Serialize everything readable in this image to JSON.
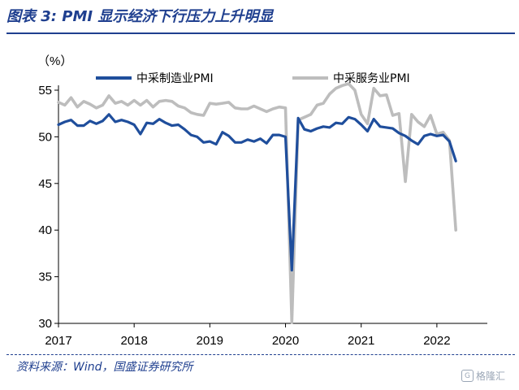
{
  "header": {
    "title": "图表 3:  PMI 显示经济下行压力上升明显"
  },
  "footer": {
    "source": "资料来源：Wind，国盛证券研究所",
    "watermark_icon": "G",
    "watermark_text": "格隆汇"
  },
  "chart_data": {
    "type": "line",
    "title": "",
    "xlabel": "",
    "ylabel": "（%）",
    "ylim": [
      30,
      55
    ],
    "yticks": [
      30,
      35,
      40,
      45,
      50,
      55
    ],
    "xticks": [
      "2017",
      "2018",
      "2019",
      "2020",
      "2021",
      "2022"
    ],
    "x_start": "2017-01",
    "legend_position": "top",
    "grid": false,
    "series": [
      {
        "name": "中采制造业PMI",
        "color": "#1f4e9c",
        "values": [
          51.3,
          51.6,
          51.8,
          51.2,
          51.2,
          51.7,
          51.4,
          51.7,
          52.4,
          51.6,
          51.8,
          51.6,
          51.3,
          50.3,
          51.5,
          51.4,
          51.9,
          51.5,
          51.2,
          51.3,
          50.8,
          50.2,
          50.0,
          49.4,
          49.5,
          49.2,
          50.5,
          50.1,
          49.4,
          49.4,
          49.7,
          49.5,
          49.8,
          49.3,
          50.2,
          50.2,
          50.0,
          35.7,
          52.0,
          50.8,
          50.6,
          50.9,
          51.1,
          51.0,
          51.5,
          51.4,
          52.1,
          51.9,
          51.3,
          50.6,
          51.9,
          51.1,
          51.0,
          50.9,
          50.4,
          50.1,
          49.6,
          49.2,
          50.1,
          50.3,
          50.1,
          50.2,
          49.5,
          47.4
        ],
        "data_labels": []
      },
      {
        "name": "中采服务业PMI",
        "color": "#bdbdbd",
        "values": [
          53.7,
          53.4,
          54.2,
          53.2,
          53.8,
          53.5,
          53.1,
          53.4,
          54.4,
          53.6,
          53.8,
          53.4,
          53.9,
          53.4,
          53.9,
          53.2,
          53.8,
          53.9,
          53.8,
          53.3,
          53.1,
          52.6,
          52.4,
          52.3,
          53.6,
          53.5,
          53.6,
          53.7,
          53.1,
          53.0,
          53.0,
          53.3,
          53.0,
          52.7,
          53.0,
          53.2,
          53.1,
          30.1,
          51.8,
          52.1,
          52.4,
          53.4,
          53.6,
          54.6,
          55.2,
          55.5,
          55.7,
          55.0,
          52.4,
          51.4,
          55.2,
          54.4,
          54.5,
          52.3,
          52.5,
          45.2,
          52.4,
          51.6,
          51.1,
          52.3,
          50.3,
          50.5,
          49.6,
          40.0
        ],
        "data_labels": []
      }
    ]
  }
}
